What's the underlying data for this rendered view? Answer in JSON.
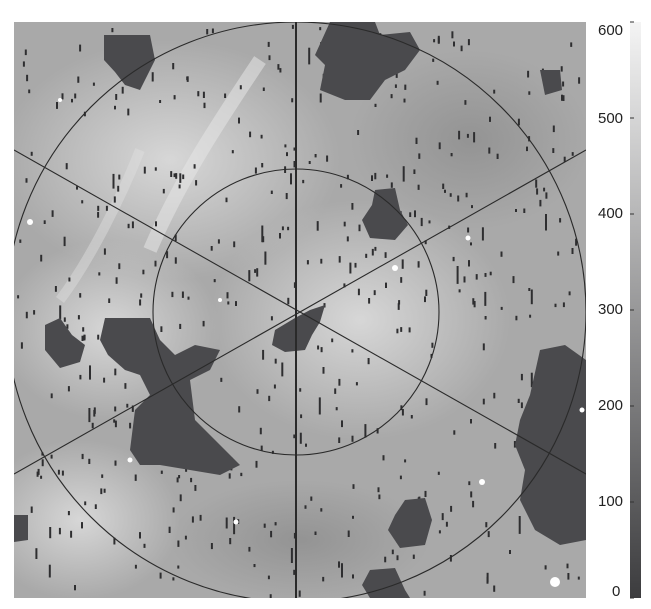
{
  "colorbar": {
    "ticks": [
      "0",
      "100",
      "200",
      "300",
      "400",
      "500",
      "600"
    ],
    "range": [
      0,
      600
    ],
    "low_color": "#3c3c3e",
    "high_color": "#f4f4f4"
  },
  "map": {
    "background_color": "#a8a8a8",
    "hole_color": "#4a4a4d",
    "line_color": "#2a2a2a"
  }
}
